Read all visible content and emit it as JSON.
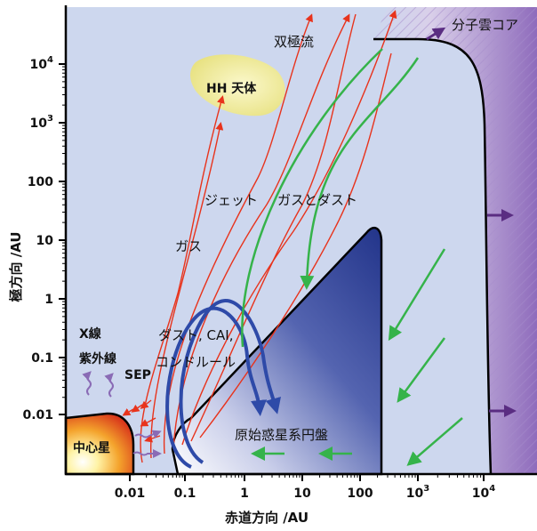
{
  "axes": {
    "x_label": "赤道方向 /AU",
    "y_label": "極方向 /AU",
    "x_ticks": [
      {
        "base": "0.01"
      },
      {
        "base": "0.1"
      },
      {
        "base": "1"
      },
      {
        "base": "10"
      },
      {
        "base": "100"
      },
      {
        "base": "10",
        "exp": "3"
      },
      {
        "base": "10",
        "exp": "4"
      }
    ],
    "y_ticks": [
      {
        "base": "10",
        "exp": "4"
      },
      {
        "base": "10",
        "exp": "3"
      },
      {
        "base": "100"
      },
      {
        "base": "10"
      },
      {
        "base": "1"
      },
      {
        "base": "0.1"
      },
      {
        "base": "0.01"
      }
    ]
  },
  "labels": {
    "bipolar_outflow": "双極流",
    "hh_object": "HH 天体",
    "molecular_cloud_core": "分子雲コア",
    "jet": "ジェット",
    "gas": "ガス",
    "gas_and_dust": "ガスとダスト",
    "x_ray": "X線",
    "uv": "紫外線",
    "sep": "SEP",
    "dust_cai": "ダスト, CAI,",
    "chondrule": "コンドルール",
    "central_star": "中心星",
    "protoplanetary_disk": "原始惑星系円盤"
  },
  "colors": {
    "background": "#cdd7ee",
    "disk": "#2b3f93",
    "cloud_core": "#8a6bb5",
    "hh_object": "#f0eb9a",
    "jet_arrows": "#e8331c",
    "infall_arrows": "#35b34a",
    "dust_loop": "#2e4aa8",
    "radiation": "#8a6bb5",
    "star_core": "#fff5b0",
    "star_edge": "#e0401c"
  }
}
